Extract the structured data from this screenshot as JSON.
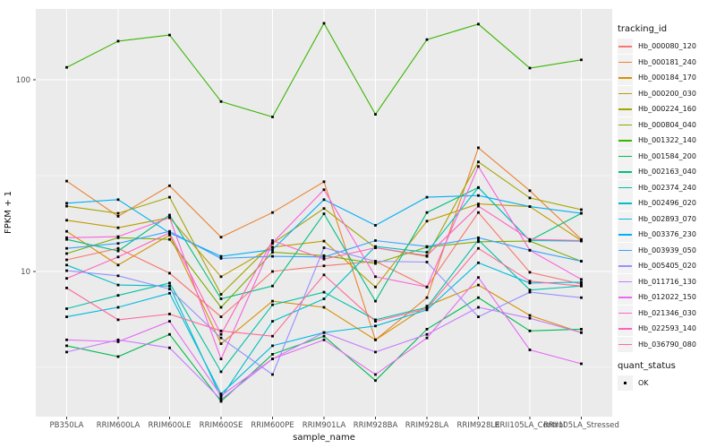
{
  "figure": {
    "background": "#FFFFFF",
    "panel_background": "#EBEBEB",
    "grid_color": "#FFFFFF",
    "marker_color": "#000000",
    "axis_text_color": "#4D4D4D"
  },
  "axes": {
    "x": {
      "title": "sample_name"
    },
    "y": {
      "title": "FPKM + 1",
      "tick_labels": [
        "100",
        "10"
      ],
      "tick_values": [
        100,
        10
      ]
    }
  },
  "legend": {
    "tracking_title": "tracking_id",
    "quant_title": "quant_status",
    "quant_items": [
      {
        "label": "OK",
        "marker": "black-square"
      }
    ]
  },
  "chart_data": {
    "type": "line",
    "title": "",
    "xlabel": "sample_name",
    "ylabel": "FPKM + 1",
    "yscale": "log10",
    "ylim": [
      1.75,
      235
    ],
    "yticks": [
      10,
      100
    ],
    "minor_breaks": [
      3.162,
      31.62
    ],
    "grid": true,
    "legend_position": "right",
    "marker": "small black square (quant_status = OK)",
    "categories": [
      "PB350LA",
      "RRIM600LA",
      "RRIM600LE",
      "RRIM600SE",
      "RRIM600PE",
      "RRIM901LA",
      "RRIM928BA",
      "RRIM928LA",
      "RRIM928LE",
      "RRII105LA_Control",
      "RRII105LA_Stressed"
    ],
    "series": [
      {
        "name": "Hb_000080_120",
        "color": "#F8766D",
        "values": [
          11.5,
          13.2,
          9.8,
          5.8,
          10.0,
          10.7,
          11.3,
          8.3,
          20.3,
          9.9,
          8.6
        ]
      },
      {
        "name": "Hb_000181_240",
        "color": "#EA8331",
        "values": [
          29.6,
          19.4,
          28.0,
          15.1,
          20.3,
          29.4,
          4.4,
          7.3,
          44.2,
          26.4,
          14.7
        ]
      },
      {
        "name": "Hb_000184_170",
        "color": "#D89000",
        "values": [
          16.2,
          10.8,
          15.5,
          4.2,
          7.0,
          6.5,
          4.4,
          6.6,
          8.5,
          5.9,
          4.8
        ]
      },
      {
        "name": "Hb_000200_030",
        "color": "#C09B00",
        "values": [
          18.5,
          16.9,
          19.1,
          9.4,
          13.4,
          14.4,
          8.3,
          18.3,
          22.5,
          21.8,
          14.5
        ]
      },
      {
        "name": "Hb_000224_160",
        "color": "#A3A500",
        "values": [
          21.9,
          20.1,
          24.4,
          7.6,
          14.0,
          21.3,
          13.3,
          12.0,
          37.3,
          24.2,
          21.0
        ]
      },
      {
        "name": "Hb_000804_040",
        "color": "#7CAE00",
        "values": [
          12.4,
          15.0,
          14.7,
          6.5,
          12.6,
          12.1,
          11.0,
          13.4,
          14.3,
          14.4,
          11.3
        ]
      },
      {
        "name": "Hb_001322_140",
        "color": "#39B600",
        "values": [
          116,
          159,
          171,
          77,
          64,
          197,
          66,
          162,
          195,
          115,
          127
        ]
      },
      {
        "name": "Hb_001584_200",
        "color": "#00BB4E",
        "values": [
          4.1,
          3.6,
          4.7,
          2.1,
          3.7,
          4.6,
          2.7,
          5.0,
          7.3,
          4.9,
          5.0
        ]
      },
      {
        "name": "Hb_002163_040",
        "color": "#00BF7D",
        "values": [
          14.7,
          12.8,
          19.7,
          7.2,
          8.4,
          20.0,
          7.0,
          20.3,
          27.4,
          14.5,
          20.1
        ]
      },
      {
        "name": "Hb_002374_240",
        "color": "#00C1A3",
        "values": [
          6.4,
          7.5,
          8.7,
          3.0,
          6.7,
          7.8,
          5.6,
          6.5,
          14.6,
          8.0,
          8.4
        ]
      },
      {
        "name": "Hb_002496_020",
        "color": "#00BFC4",
        "values": [
          10.8,
          8.5,
          8.4,
          2.2,
          5.5,
          7.2,
          13.5,
          12.6,
          27.4,
          14.5,
          14.4
        ]
      },
      {
        "name": "Hb_002893_070",
        "color": "#00BAE0",
        "values": [
          5.8,
          6.5,
          7.7,
          2.3,
          4.1,
          4.8,
          5.2,
          6.3,
          11.1,
          8.7,
          8.8
        ]
      },
      {
        "name": "Hb_003376_230",
        "color": "#00B0F6",
        "values": [
          22.7,
          23.7,
          15.9,
          12.0,
          13.0,
          23.7,
          17.4,
          24.4,
          24.9,
          21.8,
          20.1
        ]
      },
      {
        "name": "Hb_003939_050",
        "color": "#35A2FF",
        "values": [
          13.2,
          14.0,
          16.2,
          11.7,
          12.0,
          11.9,
          14.5,
          13.5,
          15.0,
          12.9,
          11.3
        ]
      },
      {
        "name": "Hb_005405_020",
        "color": "#9590FF",
        "values": [
          10.1,
          9.5,
          8.1,
          4.5,
          2.9,
          13.3,
          11.3,
          11.2,
          5.8,
          7.8,
          7.3
        ]
      },
      {
        "name": "Hb_011716_130",
        "color": "#C77CFF",
        "values": [
          3.8,
          4.4,
          4.0,
          2.15,
          3.5,
          4.8,
          3.8,
          4.7,
          6.5,
          5.7,
          4.8
        ]
      },
      {
        "name": "Hb_012022_150",
        "color": "#E76BF3",
        "values": [
          4.4,
          4.3,
          5.5,
          2.25,
          3.5,
          4.4,
          2.9,
          4.5,
          9.3,
          3.9,
          3.3
        ]
      },
      {
        "name": "Hb_021346_030",
        "color": "#FA62DB",
        "values": [
          15.0,
          15.2,
          19.1,
          3.5,
          14.1,
          26.7,
          9.4,
          8.3,
          35.3,
          12.9,
          9.1
        ]
      },
      {
        "name": "Hb_022593_140",
        "color": "#FF62BC",
        "values": [
          9.2,
          11.9,
          15.9,
          4.7,
          14.5,
          11.6,
          13.3,
          12.1,
          21.9,
          14.7,
          14.5
        ]
      },
      {
        "name": "Hb_036790_080",
        "color": "#FF6A98",
        "values": [
          8.2,
          5.6,
          6.0,
          4.9,
          4.6,
          9.6,
          5.5,
          6.4,
          13.2,
          8.9,
          8.4
        ]
      }
    ]
  }
}
